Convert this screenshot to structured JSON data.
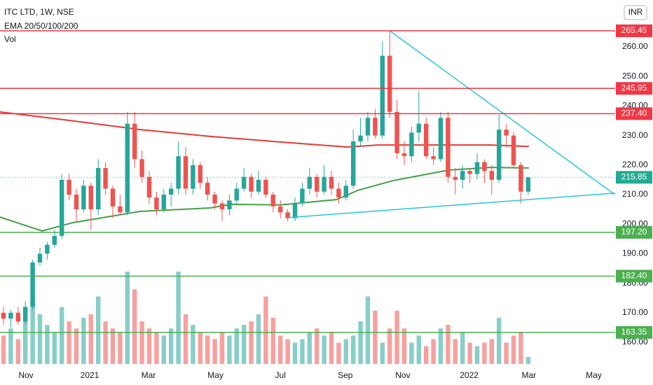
{
  "header": {
    "symbol": "ITC LTD, 1W, NSE",
    "indicators": "EMA 20/50/100/200",
    "volume_label": "Vol",
    "currency": "INR"
  },
  "chart_data": {
    "type": "candlestick",
    "up_color": "#26a69a",
    "down_color": "#ef5350",
    "xlim": [
      -0.48,
      83.94
    ],
    "ylim": [
      152.65,
      275.88
    ],
    "xticks": [
      {
        "value": 3.08,
        "label": "Nov"
      },
      {
        "value": 11.83,
        "label": "2021"
      },
      {
        "value": 19.9,
        "label": "Mar"
      },
      {
        "value": 29.1,
        "label": "May"
      },
      {
        "value": 38,
        "label": "Jul"
      },
      {
        "value": 46.9,
        "label": "Sep"
      },
      {
        "value": 54.8,
        "label": "Nov"
      },
      {
        "value": 63.9,
        "label": "2022"
      },
      {
        "value": 72.1,
        "label": "Mar"
      },
      {
        "value": 81,
        "label": "May"
      }
    ],
    "yticks": [
      {
        "value": 160,
        "label": "160.00"
      },
      {
        "value": 170,
        "label": "170.00"
      },
      {
        "value": 180,
        "label": "180.00"
      },
      {
        "value": 190,
        "label": "190.00"
      },
      {
        "value": 200,
        "label": "200.00"
      },
      {
        "value": 210,
        "label": "210.00"
      },
      {
        "value": 220,
        "label": "220.00"
      },
      {
        "value": 230,
        "label": "230.00"
      },
      {
        "value": 240,
        "label": "240.00"
      },
      {
        "value": 250,
        "label": "250.00"
      },
      {
        "value": 260,
        "label": "260.00"
      }
    ],
    "ohlc": [
      [
        170,
        172,
        166,
        168
      ],
      [
        168,
        171,
        165,
        170
      ],
      [
        170,
        172,
        166,
        167
      ],
      [
        167,
        174,
        166,
        172
      ],
      [
        172,
        188,
        171,
        187
      ],
      [
        187,
        192,
        186,
        190
      ],
      [
        190,
        194,
        188,
        193
      ],
      [
        193,
        198,
        192,
        196
      ],
      [
        196,
        217,
        195,
        215
      ],
      [
        215,
        217,
        208,
        210
      ],
      [
        210,
        212,
        201,
        205
      ],
      [
        205,
        215,
        204,
        213
      ],
      [
        213,
        214,
        198,
        205
      ],
      [
        205,
        222,
        203,
        219
      ],
      [
        219,
        221,
        210,
        212
      ],
      [
        212,
        213,
        202,
        206
      ],
      [
        206,
        210,
        203,
        204
      ],
      [
        204,
        238,
        203,
        234
      ],
      [
        234,
        238,
        219,
        222
      ],
      [
        222,
        225,
        214,
        216
      ],
      [
        216,
        218,
        207,
        209
      ],
      [
        209,
        211,
        203,
        205
      ],
      [
        205,
        212,
        204,
        210
      ],
      [
        210,
        214,
        206,
        212
      ],
      [
        212,
        228,
        210,
        223
      ],
      [
        223,
        226,
        210,
        212
      ],
      [
        212,
        222,
        210,
        220
      ],
      [
        220,
        221,
        212,
        214
      ],
      [
        214,
        216,
        208,
        210
      ],
      [
        210,
        211,
        205,
        207
      ],
      [
        207,
        208,
        201,
        205
      ],
      [
        205,
        210,
        203,
        208
      ],
      [
        208,
        214,
        207,
        212
      ],
      [
        212,
        219,
        211,
        216
      ],
      [
        216,
        217,
        209,
        211
      ],
      [
        211,
        218,
        210,
        215
      ],
      [
        215,
        216,
        209,
        210
      ],
      [
        210,
        211,
        204,
        206
      ],
      [
        206,
        208,
        202,
        204
      ],
      [
        204,
        205,
        201,
        202
      ],
      [
        202,
        209,
        201,
        207
      ],
      [
        207,
        214,
        206,
        212
      ],
      [
        212,
        219,
        210,
        216
      ],
      [
        216,
        217,
        209,
        211
      ],
      [
        211,
        220,
        210,
        216
      ],
      [
        216,
        218,
        210,
        212
      ],
      [
        212,
        214,
        207,
        209
      ],
      [
        209,
        215,
        208,
        213
      ],
      [
        213,
        232,
        212,
        228
      ],
      [
        228,
        236,
        226,
        230
      ],
      [
        230,
        238,
        228,
        236
      ],
      [
        236,
        239,
        229,
        230
      ],
      [
        230,
        262,
        229,
        257
      ],
      [
        257,
        265.45,
        236,
        238
      ],
      [
        238,
        242,
        222,
        224
      ],
      [
        224,
        228,
        220,
        223
      ],
      [
        223,
        233,
        221,
        231
      ],
      [
        231,
        245,
        228,
        234
      ],
      [
        234,
        236,
        222,
        223
      ],
      [
        223,
        226,
        220,
        222
      ],
      [
        222,
        238,
        221,
        236
      ],
      [
        236,
        238,
        214,
        216
      ],
      [
        216,
        219,
        210,
        215
      ],
      [
        215,
        220,
        212,
        218
      ],
      [
        218,
        219,
        214,
        217
      ],
      [
        217,
        224,
        215,
        221
      ],
      [
        221,
        222,
        214,
        218
      ],
      [
        218,
        220,
        210,
        215
      ],
      [
        215,
        237,
        214,
        232
      ],
      [
        232,
        234,
        226,
        230
      ],
      [
        230,
        231,
        219,
        220
      ],
      [
        220,
        221,
        207,
        211
      ],
      [
        211,
        216,
        210,
        215.85
      ]
    ],
    "volume": [
      40,
      50,
      35,
      60,
      95,
      70,
      55,
      45,
      80,
      60,
      50,
      65,
      70,
      95,
      60,
      50,
      45,
      130,
      105,
      60,
      50,
      45,
      40,
      50,
      130,
      70,
      55,
      45,
      40,
      35,
      45,
      40,
      50,
      55,
      60,
      70,
      95,
      65,
      40,
      35,
      30,
      35,
      45,
      50,
      40,
      45,
      30,
      35,
      40,
      60,
      95,
      75,
      30,
      50,
      75,
      50,
      30,
      40,
      25,
      35,
      50,
      55,
      35,
      45,
      30,
      25,
      30,
      35,
      65,
      30,
      40,
      45,
      10
    ],
    "levels": [
      {
        "value": 265.45,
        "color": "#f23645"
      },
      {
        "value": 245.95,
        "color": "#f23645"
      },
      {
        "value": {
          "value": 237.4,
          "label": "237.40"
        },
        "color": "#f23645"
      },
      {
        "value": {
          "value": 197.2,
          "label": "197.20"
        },
        "color": "#4caf50"
      },
      {
        "value": {
          "value": 182.4,
          "label": "182.40"
        },
        "color": "#4caf50"
      },
      {
        "value": 163.35,
        "color": "#4caf50"
      }
    ],
    "last_price": 215.85,
    "last_color": "#22ab94",
    "ema": [
      {
        "color": "#e53935",
        "x": [
          -0.5,
          9.1,
          18.75,
          28.4,
          38,
          47.1,
          51.4,
          57.2,
          66.8,
          72.1
        ],
        "values": [
          238,
          235.1,
          232,
          229.7,
          227.8,
          226.1,
          226.8,
          226.8,
          226.8,
          226.3
        ]
      },
      {
        "color": "#43a047",
        "x": [
          -0.5,
          5.3,
          9.5,
          18.75,
          28.4,
          31.25,
          38,
          45.7,
          48.6,
          53.4,
          61.1,
          66.8,
          72.1
        ],
        "values": [
          202.4,
          197.7,
          200.5,
          204.3,
          205.5,
          206.7,
          206.5,
          208.3,
          211.4,
          214.7,
          218.3,
          219.2,
          219
        ]
      }
    ],
    "trendlines": [
      {
        "color": "#26c6da",
        "x": [
          53,
          83.9
        ],
        "values": [
          265.45,
          210
        ]
      },
      {
        "color": "#26c6da",
        "x": [
          39,
          83.9
        ],
        "values": [
          202.2,
          210.5
        ]
      }
    ]
  }
}
